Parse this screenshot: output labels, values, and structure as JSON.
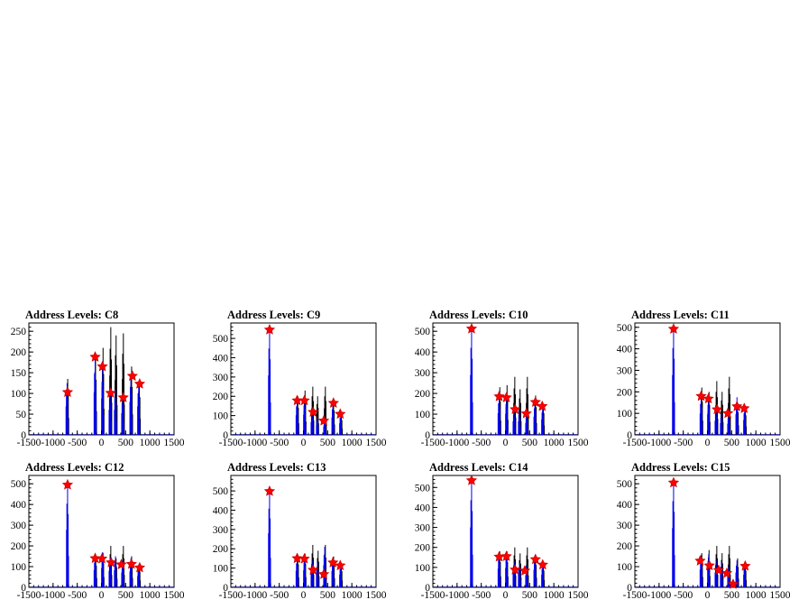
{
  "chart_data": [
    {
      "title": "Address Levels: C8",
      "type": "histogram",
      "xlim": [
        -1500,
        1500
      ],
      "ylim": [
        0,
        270
      ],
      "yticks": [
        0,
        50,
        100,
        150,
        200,
        250
      ],
      "xticks": [
        -1500,
        -1000,
        -500,
        0,
        500,
        1000,
        1500
      ],
      "xtick_labels": [
        "-1500",
        "-1000",
        "-500",
        "0",
        "500",
        "1000",
        "1500"
      ],
      "peaks_black": [
        [
          -700,
          135
        ],
        [
          -125,
          190
        ],
        [
          30,
          210
        ],
        [
          190,
          260
        ],
        [
          300,
          240
        ],
        [
          450,
          245
        ],
        [
          620,
          165
        ],
        [
          780,
          130
        ]
      ],
      "peaks_blue": [
        [
          -710,
          125
        ],
        [
          -130,
          185
        ],
        [
          25,
          160
        ],
        [
          180,
          110
        ],
        [
          290,
          110
        ],
        [
          440,
          95
        ],
        [
          610,
          145
        ],
        [
          770,
          125
        ]
      ],
      "markers": [
        [
          -700,
          103
        ],
        [
          -130,
          188
        ],
        [
          20,
          165
        ],
        [
          190,
          101
        ],
        [
          450,
          90
        ],
        [
          640,
          142
        ],
        [
          790,
          123
        ]
      ]
    },
    {
      "title": "Address Levels: C9",
      "type": "histogram",
      "xlim": [
        -1500,
        1500
      ],
      "ylim": [
        0,
        580
      ],
      "yticks": [
        0,
        100,
        200,
        300,
        400,
        500
      ],
      "xticks": [
        -1500,
        -1000,
        -500,
        0,
        500,
        1000,
        1500
      ],
      "xtick_labels": [
        "-1500",
        "-1000",
        "-500",
        "0",
        "500",
        "1000",
        "1500"
      ],
      "peaks_black": [
        [
          -700,
          40
        ],
        [
          -120,
          200
        ],
        [
          30,
          230
        ],
        [
          190,
          250
        ],
        [
          290,
          200
        ],
        [
          450,
          250
        ],
        [
          620,
          180
        ],
        [
          780,
          110
        ]
      ],
      "peaks_blue": [
        [
          -700,
          560
        ],
        [
          -130,
          185
        ],
        [
          25,
          190
        ],
        [
          180,
          120
        ],
        [
          290,
          90
        ],
        [
          440,
          80
        ],
        [
          610,
          165
        ],
        [
          770,
          110
        ]
      ],
      "markers": [
        [
          -700,
          545
        ],
        [
          -130,
          178
        ],
        [
          20,
          178
        ],
        [
          200,
          118
        ],
        [
          420,
          73
        ],
        [
          620,
          165
        ],
        [
          760,
          108
        ]
      ]
    },
    {
      "title": "Address Levels: C10",
      "type": "histogram",
      "xlim": [
        -1500,
        1500
      ],
      "ylim": [
        0,
        540
      ],
      "yticks": [
        0,
        100,
        200,
        300,
        400,
        500
      ],
      "xticks": [
        -1500,
        -1000,
        -500,
        0,
        500,
        1000,
        1500
      ],
      "xtick_labels": [
        "-1500",
        "-1000",
        "-500",
        "0",
        "500",
        "1000",
        "1500"
      ],
      "peaks_black": [
        [
          -700,
          30
        ],
        [
          -120,
          230
        ],
        [
          30,
          240
        ],
        [
          190,
          280
        ],
        [
          300,
          220
        ],
        [
          450,
          280
        ],
        [
          620,
          190
        ],
        [
          780,
          150
        ]
      ],
      "peaks_blue": [
        [
          -700,
          525
        ],
        [
          -130,
          190
        ],
        [
          25,
          185
        ],
        [
          180,
          120
        ],
        [
          290,
          120
        ],
        [
          440,
          105
        ],
        [
          610,
          160
        ],
        [
          770,
          135
        ]
      ],
      "markers": [
        [
          -700,
          512
        ],
        [
          -130,
          185
        ],
        [
          20,
          180
        ],
        [
          200,
          123
        ],
        [
          430,
          103
        ],
        [
          620,
          158
        ],
        [
          760,
          138
        ]
      ]
    },
    {
      "title": "Address Levels: C11",
      "type": "histogram",
      "xlim": [
        -1500,
        1500
      ],
      "ylim": [
        0,
        520
      ],
      "yticks": [
        0,
        100,
        200,
        300,
        400,
        500
      ],
      "xticks": [
        -1500,
        -1000,
        -500,
        0,
        500,
        1000,
        1500
      ],
      "xtick_labels": [
        "-1500",
        "-1000",
        "-500",
        "0",
        "500",
        "1000",
        "1500"
      ],
      "peaks_black": [
        [
          -700,
          45
        ],
        [
          -120,
          220
        ],
        [
          30,
          200
        ],
        [
          190,
          250
        ],
        [
          300,
          200
        ],
        [
          450,
          270
        ],
        [
          620,
          150
        ],
        [
          780,
          130
        ]
      ],
      "peaks_blue": [
        [
          -700,
          505
        ],
        [
          -130,
          180
        ],
        [
          25,
          175
        ],
        [
          180,
          120
        ],
        [
          290,
          100
        ],
        [
          440,
          95
        ],
        [
          610,
          175
        ],
        [
          770,
          125
        ]
      ],
      "markers": [
        [
          -700,
          492
        ],
        [
          -130,
          180
        ],
        [
          20,
          168
        ],
        [
          200,
          118
        ],
        [
          420,
          100
        ],
        [
          610,
          132
        ],
        [
          760,
          123
        ]
      ]
    },
    {
      "title": "Address Levels: C12",
      "type": "histogram",
      "xlim": [
        -1500,
        1500
      ],
      "ylim": [
        0,
        540
      ],
      "yticks": [
        0,
        100,
        200,
        300,
        400,
        500
      ],
      "xticks": [
        -1500,
        -1000,
        -500,
        0,
        500,
        1000,
        1500
      ],
      "xtick_labels": [
        "-1500",
        "-1000",
        "-500",
        "0",
        "500",
        "1000",
        "1500"
      ],
      "peaks_black": [
        [
          -700,
          40
        ],
        [
          -120,
          150
        ],
        [
          30,
          165
        ],
        [
          190,
          200
        ],
        [
          300,
          140
        ],
        [
          450,
          200
        ],
        [
          620,
          150
        ],
        [
          780,
          110
        ]
      ],
      "peaks_blue": [
        [
          -700,
          505
        ],
        [
          -130,
          150
        ],
        [
          25,
          170
        ],
        [
          180,
          145
        ],
        [
          290,
          150
        ],
        [
          440,
          130
        ],
        [
          610,
          140
        ],
        [
          770,
          100
        ]
      ],
      "markers": [
        [
          -700,
          495
        ],
        [
          -130,
          140
        ],
        [
          10,
          138
        ],
        [
          200,
          120
        ],
        [
          410,
          110
        ],
        [
          620,
          112
        ],
        [
          790,
          95
        ]
      ]
    },
    {
      "title": "Address Levels: C13",
      "type": "histogram",
      "xlim": [
        -1500,
        1500
      ],
      "ylim": [
        0,
        580
      ],
      "yticks": [
        0,
        100,
        200,
        300,
        400,
        500
      ],
      "xticks": [
        -1500,
        -1000,
        -500,
        0,
        500,
        1000,
        1500
      ],
      "xtick_labels": [
        "-1500",
        "-1000",
        "-500",
        "0",
        "500",
        "1000",
        "1500"
      ],
      "peaks_black": [
        [
          -700,
          70
        ],
        [
          -120,
          170
        ],
        [
          30,
          175
        ],
        [
          190,
          220
        ],
        [
          300,
          190
        ],
        [
          450,
          220
        ],
        [
          620,
          160
        ],
        [
          780,
          120
        ]
      ],
      "peaks_blue": [
        [
          -700,
          510
        ],
        [
          -130,
          155
        ],
        [
          25,
          160
        ],
        [
          180,
          140
        ],
        [
          290,
          130
        ],
        [
          440,
          210
        ],
        [
          610,
          155
        ],
        [
          770,
          120
        ]
      ],
      "markers": [
        [
          -700,
          498
        ],
        [
          -130,
          150
        ],
        [
          20,
          148
        ],
        [
          200,
          90
        ],
        [
          420,
          68
        ],
        [
          610,
          128
        ],
        [
          760,
          113
        ]
      ]
    },
    {
      "title": "Address Levels: C14",
      "type": "histogram",
      "xlim": [
        -1500,
        1500
      ],
      "ylim": [
        0,
        560
      ],
      "yticks": [
        0,
        100,
        200,
        300,
        400,
        500
      ],
      "xticks": [
        -1500,
        -1000,
        -500,
        0,
        500,
        1000,
        1500
      ],
      "xtick_labels": [
        "-1500",
        "-1000",
        "-500",
        "0",
        "500",
        "1000",
        "1500"
      ],
      "peaks_black": [
        [
          -700,
          40
        ],
        [
          -120,
          180
        ],
        [
          30,
          180
        ],
        [
          190,
          200
        ],
        [
          300,
          170
        ],
        [
          450,
          200
        ],
        [
          620,
          160
        ],
        [
          780,
          120
        ]
      ],
      "peaks_blue": [
        [
          -700,
          545
        ],
        [
          -130,
          170
        ],
        [
          25,
          175
        ],
        [
          180,
          130
        ],
        [
          290,
          120
        ],
        [
          440,
          110
        ],
        [
          610,
          160
        ],
        [
          770,
          115
        ]
      ],
      "markers": [
        [
          -700,
          535
        ],
        [
          -130,
          153
        ],
        [
          20,
          155
        ],
        [
          200,
          88
        ],
        [
          400,
          83
        ],
        [
          620,
          140
        ],
        [
          770,
          113
        ]
      ]
    },
    {
      "title": "Address Levels: C15",
      "type": "histogram",
      "xlim": [
        -1500,
        1500
      ],
      "ylim": [
        0,
        540
      ],
      "yticks": [
        0,
        100,
        200,
        300,
        400,
        500
      ],
      "xticks": [
        -1500,
        -1000,
        -500,
        0,
        500,
        1000,
        1500
      ],
      "xtick_labels": [
        "-1500",
        "-1000",
        "-500",
        "0",
        "500",
        "1000",
        "1500"
      ],
      "peaks_black": [
        [
          -700,
          40
        ],
        [
          -120,
          165
        ],
        [
          30,
          180
        ],
        [
          190,
          200
        ],
        [
          300,
          165
        ],
        [
          450,
          200
        ],
        [
          620,
          140
        ],
        [
          780,
          115
        ]
      ],
      "peaks_blue": [
        [
          -700,
          520
        ],
        [
          -130,
          155
        ],
        [
          25,
          160
        ],
        [
          180,
          130
        ],
        [
          290,
          125
        ],
        [
          440,
          100
        ],
        [
          610,
          130
        ],
        [
          770,
          110
        ]
      ],
      "markers": [
        [
          -700,
          505
        ],
        [
          -150,
          128
        ],
        [
          40,
          105
        ],
        [
          230,
          83
        ],
        [
          400,
          68
        ],
        [
          530,
          15
        ],
        [
          780,
          103
        ]
      ]
    }
  ],
  "colors": {
    "black_histogram": "#000000",
    "blue_histogram": "#0000ee",
    "marker_fill": "#ff0000",
    "marker_outline": "#cc0000"
  }
}
